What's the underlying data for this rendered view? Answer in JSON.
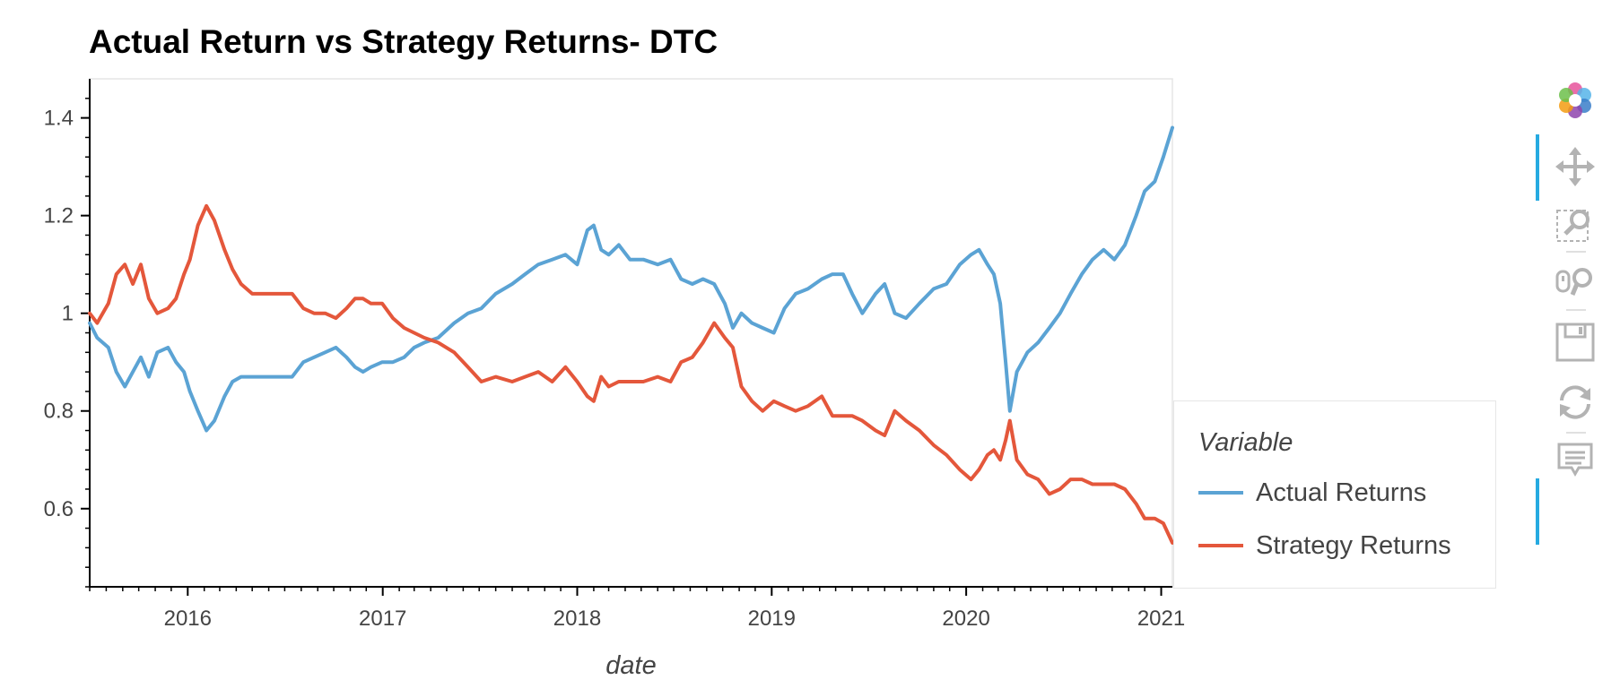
{
  "chart_data": {
    "type": "line",
    "title": "Actual Return vs Strategy Returns- DTC",
    "xlabel": "date",
    "ylabel": "",
    "xlim": [
      "2015-07-01",
      "2021-01-22"
    ],
    "ylim": [
      0.44,
      1.48
    ],
    "x_ticks": [
      "2016",
      "2017",
      "2018",
      "2019",
      "2020",
      "2021"
    ],
    "y_ticks": [
      0.6,
      0.8,
      1,
      1.2,
      1.4
    ],
    "y_tick_labels": [
      "0.6",
      "0.8",
      "1",
      "1.2",
      "1.4"
    ],
    "grid": false,
    "legend": {
      "title": "Variable",
      "placement": "right"
    },
    "series": [
      {
        "name": "Actual Returns",
        "color": "#5ba3d4",
        "points": [
          [
            "2015-07-01",
            0.98
          ],
          [
            "2015-07-15",
            0.95
          ],
          [
            "2015-08-05",
            0.93
          ],
          [
            "2015-08-20",
            0.88
          ],
          [
            "2015-09-05",
            0.85
          ],
          [
            "2015-09-20",
            0.88
          ],
          [
            "2015-10-05",
            0.91
          ],
          [
            "2015-10-20",
            0.87
          ],
          [
            "2015-11-05",
            0.92
          ],
          [
            "2015-11-25",
            0.93
          ],
          [
            "2015-12-10",
            0.9
          ],
          [
            "2015-12-25",
            0.88
          ],
          [
            "2016-01-05",
            0.84
          ],
          [
            "2016-01-20",
            0.8
          ],
          [
            "2016-02-05",
            0.76
          ],
          [
            "2016-02-20",
            0.78
          ],
          [
            "2016-03-10",
            0.83
          ],
          [
            "2016-03-25",
            0.86
          ],
          [
            "2016-04-10",
            0.87
          ],
          [
            "2016-05-01",
            0.87
          ],
          [
            "2016-07-15",
            0.87
          ],
          [
            "2016-08-05",
            0.9
          ],
          [
            "2016-08-25",
            0.91
          ],
          [
            "2016-09-15",
            0.92
          ],
          [
            "2016-10-05",
            0.93
          ],
          [
            "2016-10-25",
            0.91
          ],
          [
            "2016-11-10",
            0.89
          ],
          [
            "2016-11-25",
            0.88
          ],
          [
            "2016-12-10",
            0.89
          ],
          [
            "2016-12-31",
            0.9
          ],
          [
            "2017-01-20",
            0.9
          ],
          [
            "2017-02-10",
            0.91
          ],
          [
            "2017-03-01",
            0.93
          ],
          [
            "2017-03-20",
            0.94
          ],
          [
            "2017-04-15",
            0.95
          ],
          [
            "2017-05-15",
            0.98
          ],
          [
            "2017-06-10",
            1.0
          ],
          [
            "2017-07-05",
            1.01
          ],
          [
            "2017-08-01",
            1.04
          ],
          [
            "2017-09-01",
            1.06
          ],
          [
            "2017-09-25",
            1.08
          ],
          [
            "2017-10-20",
            1.1
          ],
          [
            "2017-11-15",
            1.11
          ],
          [
            "2017-12-10",
            1.12
          ],
          [
            "2018-01-01",
            1.1
          ],
          [
            "2018-01-20",
            1.17
          ],
          [
            "2018-02-01",
            1.18
          ],
          [
            "2018-02-15",
            1.13
          ],
          [
            "2018-03-01",
            1.12
          ],
          [
            "2018-03-20",
            1.14
          ],
          [
            "2018-04-10",
            1.11
          ],
          [
            "2018-05-05",
            1.11
          ],
          [
            "2018-06-01",
            1.1
          ],
          [
            "2018-06-25",
            1.11
          ],
          [
            "2018-07-15",
            1.07
          ],
          [
            "2018-08-05",
            1.06
          ],
          [
            "2018-08-25",
            1.07
          ],
          [
            "2018-09-15",
            1.06
          ],
          [
            "2018-10-05",
            1.02
          ],
          [
            "2018-10-20",
            0.97
          ],
          [
            "2018-11-05",
            1.0
          ],
          [
            "2018-11-25",
            0.98
          ],
          [
            "2018-12-15",
            0.97
          ],
          [
            "2019-01-05",
            0.96
          ],
          [
            "2019-01-25",
            1.01
          ],
          [
            "2019-02-15",
            1.04
          ],
          [
            "2019-03-10",
            1.05
          ],
          [
            "2019-04-05",
            1.07
          ],
          [
            "2019-04-25",
            1.08
          ],
          [
            "2019-05-15",
            1.08
          ],
          [
            "2019-06-01",
            1.04
          ],
          [
            "2019-06-20",
            1.0
          ],
          [
            "2019-07-15",
            1.04
          ],
          [
            "2019-08-01",
            1.06
          ],
          [
            "2019-08-20",
            1.0
          ],
          [
            "2019-09-10",
            0.99
          ],
          [
            "2019-10-05",
            1.02
          ],
          [
            "2019-11-01",
            1.05
          ],
          [
            "2019-11-25",
            1.06
          ],
          [
            "2019-12-20",
            1.1
          ],
          [
            "2020-01-10",
            1.12
          ],
          [
            "2020-01-25",
            1.13
          ],
          [
            "2020-02-10",
            1.1
          ],
          [
            "2020-02-22",
            1.08
          ],
          [
            "2020-03-05",
            1.02
          ],
          [
            "2020-03-15",
            0.9
          ],
          [
            "2020-03-23",
            0.8
          ],
          [
            "2020-04-05",
            0.88
          ],
          [
            "2020-04-25",
            0.92
          ],
          [
            "2020-05-15",
            0.94
          ],
          [
            "2020-06-05",
            0.97
          ],
          [
            "2020-06-25",
            1.0
          ],
          [
            "2020-07-15",
            1.04
          ],
          [
            "2020-08-05",
            1.08
          ],
          [
            "2020-08-25",
            1.11
          ],
          [
            "2020-09-15",
            1.13
          ],
          [
            "2020-10-05",
            1.11
          ],
          [
            "2020-10-25",
            1.14
          ],
          [
            "2020-11-15",
            1.2
          ],
          [
            "2020-12-01",
            1.25
          ],
          [
            "2020-12-20",
            1.27
          ],
          [
            "2021-01-05",
            1.32
          ],
          [
            "2021-01-22",
            1.38
          ]
        ]
      },
      {
        "name": "Strategy Returns",
        "color": "#e4573b",
        "points": [
          [
            "2015-07-01",
            1.0
          ],
          [
            "2015-07-15",
            0.98
          ],
          [
            "2015-08-05",
            1.02
          ],
          [
            "2015-08-20",
            1.08
          ],
          [
            "2015-09-05",
            1.1
          ],
          [
            "2015-09-20",
            1.06
          ],
          [
            "2015-10-05",
            1.1
          ],
          [
            "2015-10-20",
            1.03
          ],
          [
            "2015-11-05",
            1.0
          ],
          [
            "2015-11-25",
            1.01
          ],
          [
            "2015-12-10",
            1.03
          ],
          [
            "2015-12-25",
            1.08
          ],
          [
            "2016-01-05",
            1.11
          ],
          [
            "2016-01-20",
            1.18
          ],
          [
            "2016-02-05",
            1.22
          ],
          [
            "2016-02-20",
            1.19
          ],
          [
            "2016-03-10",
            1.13
          ],
          [
            "2016-03-25",
            1.09
          ],
          [
            "2016-04-10",
            1.06
          ],
          [
            "2016-05-01",
            1.04
          ],
          [
            "2016-07-15",
            1.04
          ],
          [
            "2016-08-05",
            1.01
          ],
          [
            "2016-08-25",
            1.0
          ],
          [
            "2016-09-15",
            1.0
          ],
          [
            "2016-10-05",
            0.99
          ],
          [
            "2016-10-25",
            1.01
          ],
          [
            "2016-11-10",
            1.03
          ],
          [
            "2016-11-25",
            1.03
          ],
          [
            "2016-12-10",
            1.02
          ],
          [
            "2016-12-31",
            1.02
          ],
          [
            "2017-01-20",
            0.99
          ],
          [
            "2017-02-10",
            0.97
          ],
          [
            "2017-03-01",
            0.96
          ],
          [
            "2017-03-20",
            0.95
          ],
          [
            "2017-04-15",
            0.94
          ],
          [
            "2017-05-15",
            0.92
          ],
          [
            "2017-06-10",
            0.89
          ],
          [
            "2017-07-05",
            0.86
          ],
          [
            "2017-08-01",
            0.87
          ],
          [
            "2017-09-01",
            0.86
          ],
          [
            "2017-09-25",
            0.87
          ],
          [
            "2017-10-20",
            0.88
          ],
          [
            "2017-11-15",
            0.86
          ],
          [
            "2017-12-10",
            0.89
          ],
          [
            "2018-01-01",
            0.86
          ],
          [
            "2018-01-20",
            0.83
          ],
          [
            "2018-02-01",
            0.82
          ],
          [
            "2018-02-15",
            0.87
          ],
          [
            "2018-03-01",
            0.85
          ],
          [
            "2018-03-20",
            0.86
          ],
          [
            "2018-04-10",
            0.86
          ],
          [
            "2018-05-05",
            0.86
          ],
          [
            "2018-06-01",
            0.87
          ],
          [
            "2018-06-25",
            0.86
          ],
          [
            "2018-07-15",
            0.9
          ],
          [
            "2018-08-05",
            0.91
          ],
          [
            "2018-08-25",
            0.94
          ],
          [
            "2018-09-15",
            0.98
          ],
          [
            "2018-10-05",
            0.95
          ],
          [
            "2018-10-20",
            0.93
          ],
          [
            "2018-11-05",
            0.85
          ],
          [
            "2018-11-25",
            0.82
          ],
          [
            "2018-12-15",
            0.8
          ],
          [
            "2019-01-05",
            0.82
          ],
          [
            "2019-01-25",
            0.81
          ],
          [
            "2019-02-15",
            0.8
          ],
          [
            "2019-03-10",
            0.81
          ],
          [
            "2019-04-05",
            0.83
          ],
          [
            "2019-04-25",
            0.79
          ],
          [
            "2019-05-15",
            0.79
          ],
          [
            "2019-06-01",
            0.79
          ],
          [
            "2019-06-20",
            0.78
          ],
          [
            "2019-07-15",
            0.76
          ],
          [
            "2019-08-01",
            0.75
          ],
          [
            "2019-08-20",
            0.8
          ],
          [
            "2019-09-10",
            0.78
          ],
          [
            "2019-10-05",
            0.76
          ],
          [
            "2019-11-01",
            0.73
          ],
          [
            "2019-11-25",
            0.71
          ],
          [
            "2019-12-20",
            0.68
          ],
          [
            "2020-01-10",
            0.66
          ],
          [
            "2020-01-25",
            0.68
          ],
          [
            "2020-02-10",
            0.71
          ],
          [
            "2020-02-22",
            0.72
          ],
          [
            "2020-03-05",
            0.7
          ],
          [
            "2020-03-15",
            0.74
          ],
          [
            "2020-03-23",
            0.78
          ],
          [
            "2020-04-05",
            0.7
          ],
          [
            "2020-04-25",
            0.67
          ],
          [
            "2020-05-15",
            0.66
          ],
          [
            "2020-06-05",
            0.63
          ],
          [
            "2020-06-25",
            0.64
          ],
          [
            "2020-07-15",
            0.66
          ],
          [
            "2020-08-05",
            0.66
          ],
          [
            "2020-08-25",
            0.65
          ],
          [
            "2020-09-15",
            0.65
          ],
          [
            "2020-10-05",
            0.65
          ],
          [
            "2020-10-25",
            0.64
          ],
          [
            "2020-11-15",
            0.61
          ],
          [
            "2020-12-01",
            0.58
          ],
          [
            "2020-12-20",
            0.58
          ],
          [
            "2021-01-05",
            0.57
          ],
          [
            "2021-01-22",
            0.53
          ]
        ]
      }
    ]
  },
  "legend": {
    "title": "Variable",
    "items": [
      {
        "label": "Actual Returns",
        "color": "#5ba3d4"
      },
      {
        "label": "Strategy Returns",
        "color": "#e4573b"
      }
    ]
  },
  "toolbar": {
    "tools": [
      {
        "icon": "bokeh-logo-icon",
        "active": false
      },
      {
        "icon": "pan-icon",
        "active": true
      },
      {
        "icon": "box-zoom-icon",
        "active": false
      },
      {
        "icon": "wheel-zoom-icon",
        "active": false
      },
      {
        "icon": "save-icon",
        "active": false
      },
      {
        "icon": "reset-icon",
        "active": false
      },
      {
        "icon": "hover-icon",
        "active": true
      }
    ]
  }
}
